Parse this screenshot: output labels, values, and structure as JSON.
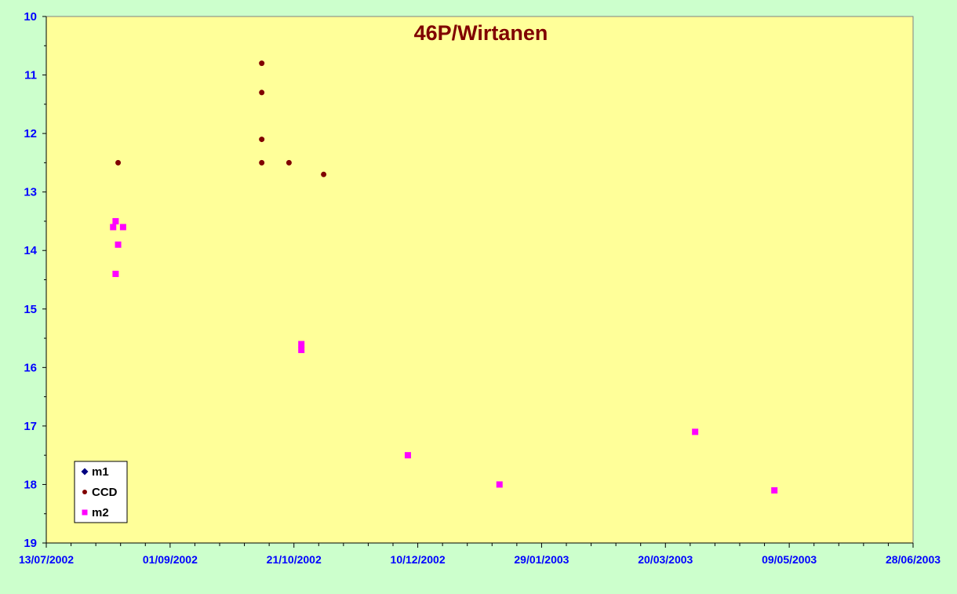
{
  "colors": {
    "page_background": "#ccffcc",
    "plot_background": "#ffff99",
    "title": "#800000",
    "tick_labels": "#0000ff",
    "axis": "#000000"
  },
  "chart_data": {
    "type": "scatter",
    "title": "46P/Wirtanen",
    "xlabel": "",
    "ylabel": "",
    "x_axis_type": "date",
    "xlim": [
      "2002-07-13",
      "2003-06-28"
    ],
    "x_ticks": [
      "13/07/2002",
      "01/09/2002",
      "21/10/2002",
      "10/12/2002",
      "29/01/2003",
      "20/03/2003",
      "09/05/2003",
      "28/06/2003"
    ],
    "ylim": [
      10,
      19
    ],
    "y_inverted": true,
    "y_ticks": [
      "10",
      "11",
      "12",
      "13",
      "14",
      "15",
      "16",
      "17",
      "18",
      "19"
    ],
    "grid": false,
    "legend_position": "bottom-left",
    "series": [
      {
        "name": "m1",
        "marker": "diamond",
        "color": "#000080",
        "points": []
      },
      {
        "name": "CCD",
        "marker": "circle",
        "color": "#800000",
        "points": [
          {
            "x": "2002-08-11",
            "y": 12.5
          },
          {
            "x": "2002-10-08",
            "y": 10.8
          },
          {
            "x": "2002-10-08",
            "y": 11.3
          },
          {
            "x": "2002-10-08",
            "y": 12.1
          },
          {
            "x": "2002-10-08",
            "y": 12.5
          },
          {
            "x": "2002-10-19",
            "y": 12.5
          },
          {
            "x": "2002-11-02",
            "y": 12.7
          }
        ]
      },
      {
        "name": "m2",
        "marker": "square",
        "color": "#ff00ff",
        "points": [
          {
            "x": "2002-08-09",
            "y": 13.6
          },
          {
            "x": "2002-08-10",
            "y": 13.5
          },
          {
            "x": "2002-08-10",
            "y": 14.4
          },
          {
            "x": "2002-08-11",
            "y": 13.9
          },
          {
            "x": "2002-08-13",
            "y": 13.6
          },
          {
            "x": "2002-10-24",
            "y": 15.6
          },
          {
            "x": "2002-10-24",
            "y": 15.7
          },
          {
            "x": "2002-12-06",
            "y": 17.5
          },
          {
            "x": "2003-01-12",
            "y": 18.0
          },
          {
            "x": "2003-04-01",
            "y": 17.1
          },
          {
            "x": "2003-05-03",
            "y": 18.1
          }
        ]
      }
    ]
  }
}
